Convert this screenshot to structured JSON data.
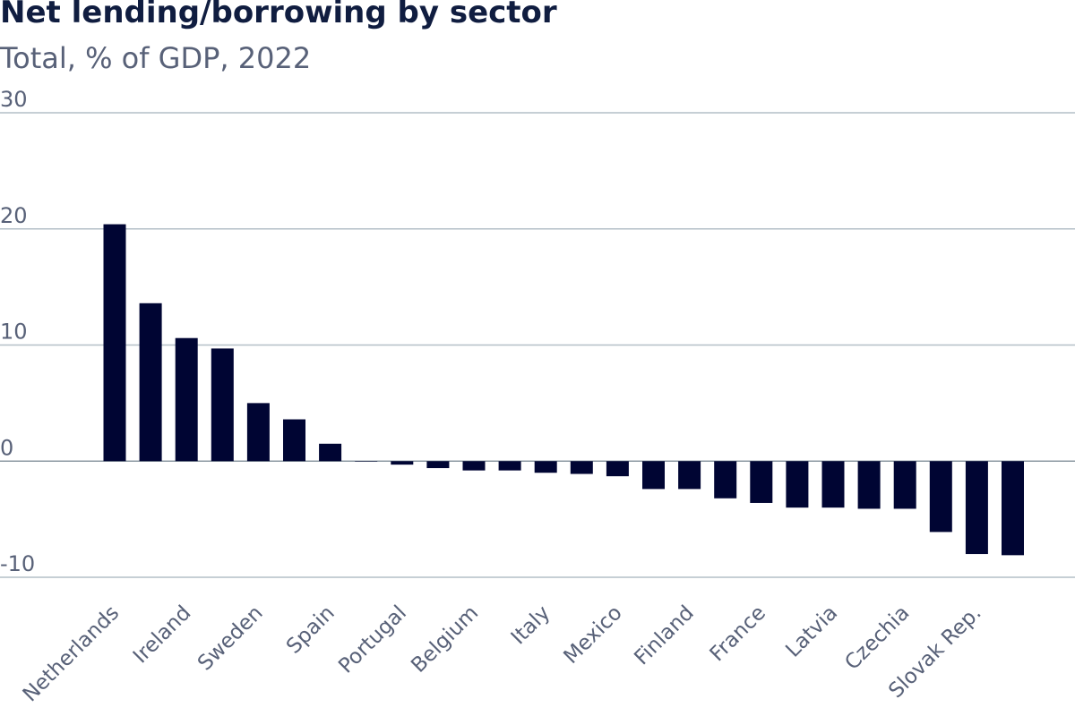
{
  "title": "Net lending/borrowing by sector",
  "subtitle": "Total, % of GDP, 2022",
  "colors": {
    "bar": "#000533",
    "title": "#101d40",
    "text": "#586178",
    "grid": "#b4bfc7"
  },
  "chart_data": {
    "type": "bar",
    "title": "Net lending/borrowing by sector",
    "subtitle": "Total, % of GDP, 2022",
    "xlabel": "",
    "ylabel": "",
    "ylim": [
      -10,
      30
    ],
    "yticks": [
      30,
      20,
      10,
      0,
      -10
    ],
    "grid": true,
    "categories": [
      "Netherlands",
      "",
      "Ireland",
      "",
      "Sweden",
      "",
      "Spain",
      "",
      "Portugal",
      "",
      "Belgium",
      "",
      "Italy",
      "",
      "Mexico",
      "",
      "Finland",
      "",
      "France",
      "",
      "Latvia",
      "",
      "Czechia",
      "",
      "Slovak Rep.",
      ""
    ],
    "values": [
      20.4,
      13.6,
      10.6,
      9.7,
      5.0,
      3.6,
      1.5,
      0.0,
      -0.3,
      -0.6,
      -0.8,
      -0.8,
      -1.0,
      -1.1,
      -1.3,
      -2.4,
      -2.4,
      -3.2,
      -3.6,
      -4.0,
      -4.0,
      -4.1,
      -4.1,
      -6.1,
      -8.0,
      -8.1
    ]
  }
}
